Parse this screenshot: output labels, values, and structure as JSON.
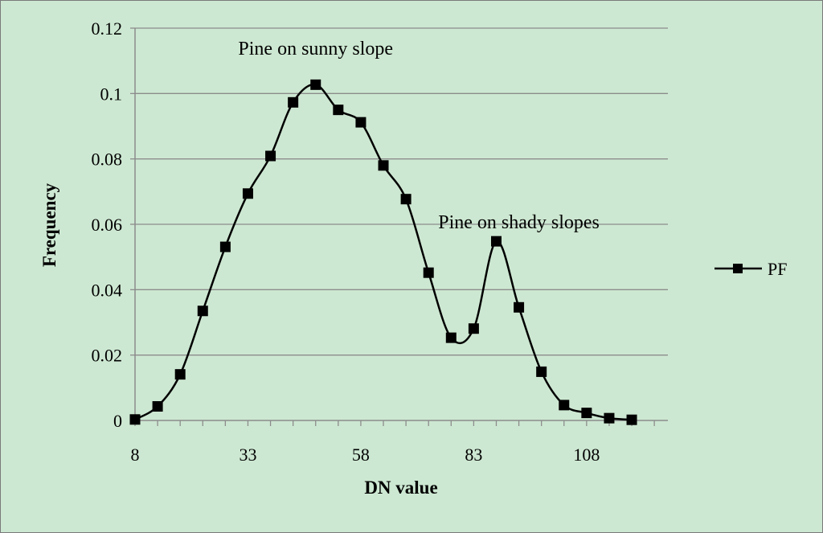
{
  "chart_data": {
    "type": "line",
    "xlabel": "DN value",
    "ylabel": "Frequency",
    "x_ticks": [
      "8",
      "33",
      "58",
      "83",
      "108"
    ],
    "y_ticks": [
      "0",
      "0.02",
      "0.04",
      "0.06",
      "0.08",
      "0.1",
      "0.12"
    ],
    "xlim": [
      8,
      126
    ],
    "ylim": [
      0,
      0.12
    ],
    "grid": "horizontal",
    "legend_position": "right",
    "series": [
      {
        "name": "PF",
        "color": "#000000",
        "marker": "square",
        "x": [
          8,
          13,
          18,
          23,
          28,
          33,
          38,
          43,
          48,
          53,
          58,
          63,
          68,
          73,
          78,
          83,
          88,
          93,
          98,
          103,
          108,
          113,
          118
        ],
        "y": [
          0.0003,
          0.0043,
          0.0141,
          0.0335,
          0.0531,
          0.0694,
          0.0809,
          0.0973,
          0.1027,
          0.095,
          0.0912,
          0.078,
          0.0677,
          0.0452,
          0.0253,
          0.0281,
          0.0548,
          0.0346,
          0.0149,
          0.0047,
          0.0023,
          0.0007,
          0.0002
        ]
      }
    ],
    "annotations": [
      {
        "text": "Pine on sunny slope",
        "x": 48,
        "y": 0.1119
      },
      {
        "text": "Pine on shady slopes",
        "x": 93,
        "y": 0.0588
      }
    ]
  }
}
